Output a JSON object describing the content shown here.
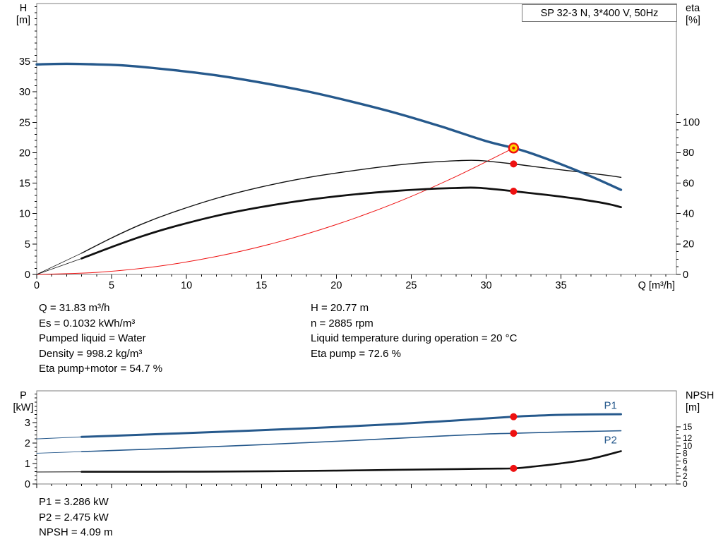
{
  "header": {
    "title": "SP 32-3 N, 3*400 V, 50Hz"
  },
  "info": {
    "top_left": [
      "Q = 31.83 m³/h",
      "Es = 0.1032 kWh/m³",
      "Pumped liquid = Water",
      "Density = 998.2 kg/m³",
      "Eta pump+motor = 54.7 %"
    ],
    "top_right": [
      "H = 20.77 m",
      "n = 2885 rpm",
      "Liquid temperature during operation = 20 °C",
      "Eta pump = 72.6 %"
    ],
    "bottom": [
      "P1 = 3.286 kW",
      "P2 = 2.475 kW",
      "NPSH = 4.09 m"
    ]
  },
  "colors": {
    "blue": "#26598c",
    "red": "#ee1111",
    "dark": "#111111",
    "duty_fill": "#ffd800",
    "frame": "#7f7f7f",
    "tick": "#000000",
    "text": "#000000"
  },
  "chart_data": [
    {
      "type": "line",
      "name": "head-efficiency-chart",
      "plot": {
        "l": 52,
        "r": 958,
        "t": 5,
        "b": 389
      },
      "x": {
        "label": "Q [m³/h]",
        "min": 0,
        "max": 42.7,
        "ticks": [
          0,
          5,
          10,
          15,
          20,
          25,
          30,
          35
        ],
        "minor": 1,
        "labels": true
      },
      "y_left": {
        "label": "H",
        "unit": "[m]",
        "min": 0,
        "max": 44.5,
        "ticks": [
          0,
          5,
          10,
          15,
          20,
          25,
          30,
          35
        ],
        "minor": 1
      },
      "y_right": {
        "label": "eta",
        "unit": "[%]",
        "min": 0,
        "max": 178,
        "ticks": [
          0,
          20,
          40,
          60,
          80,
          100
        ],
        "minor": 5,
        "minor_max": 105
      },
      "series": [
        {
          "name": "system-curve",
          "axis": "left",
          "color": "red",
          "width": 1,
          "points": [
            [
              0,
              0
            ],
            [
              4,
              0.33
            ],
            [
              8,
              1.31
            ],
            [
              12,
              2.95
            ],
            [
              16,
              5.25
            ],
            [
              20,
              8.2
            ],
            [
              24,
              11.8
            ],
            [
              28,
              16.1
            ],
            [
              31.83,
              20.77
            ]
          ]
        },
        {
          "name": "eta-pump-lead-line",
          "axis": "right",
          "color": "dark",
          "width": 0.8,
          "points": [
            [
              0,
              0
            ],
            [
              3,
              14
            ]
          ]
        },
        {
          "name": "eta-pump-motor-lead-line",
          "axis": "right",
          "color": "dark",
          "width": 0.8,
          "points": [
            [
              0,
              0
            ],
            [
              3,
              10.5
            ]
          ]
        },
        {
          "name": "eta-pump-curve",
          "axis": "right",
          "color": "dark",
          "width": 1.4,
          "points": [
            [
              3,
              14
            ],
            [
              5,
              24
            ],
            [
              7,
              33
            ],
            [
              9,
              40.5
            ],
            [
              12,
              50
            ],
            [
              15,
              57.5
            ],
            [
              18,
              63.5
            ],
            [
              21,
              68
            ],
            [
              24,
              71.8
            ],
            [
              26,
              73.6
            ],
            [
              28,
              74.7
            ],
            [
              29.5,
              74.9
            ],
            [
              31.83,
              72.6
            ],
            [
              34,
              69.9
            ],
            [
              36,
              67.6
            ],
            [
              38,
              65.2
            ],
            [
              39,
              63.8
            ]
          ]
        },
        {
          "name": "eta-pump-motor-curve",
          "axis": "right",
          "color": "dark",
          "width": 2.8,
          "points": [
            [
              3,
              10.5
            ],
            [
              5,
              18
            ],
            [
              7,
              25
            ],
            [
              9,
              31
            ],
            [
              12,
              38.5
            ],
            [
              15,
              44.3
            ],
            [
              18,
              48.9
            ],
            [
              21,
              52.4
            ],
            [
              24,
              54.9
            ],
            [
              26,
              56.1
            ],
            [
              28,
              56.8
            ],
            [
              29.5,
              56.9
            ],
            [
              31.83,
              54.7
            ],
            [
              34,
              52.3
            ],
            [
              36,
              49.8
            ],
            [
              38,
              46.6
            ],
            [
              39,
              44.2
            ]
          ]
        },
        {
          "name": "head-curve",
          "axis": "left",
          "color": "blue",
          "width": 3.4,
          "points": [
            [
              0,
              34.5
            ],
            [
              2,
              34.6
            ],
            [
              4,
              34.5
            ],
            [
              6,
              34.3
            ],
            [
              9,
              33.6
            ],
            [
              12,
              32.7
            ],
            [
              15,
              31.5
            ],
            [
              18,
              30.1
            ],
            [
              21,
              28.4
            ],
            [
              24,
              26.5
            ],
            [
              27,
              24.3
            ],
            [
              30,
              21.9
            ],
            [
              31.83,
              20.77
            ],
            [
              33,
              19.9
            ],
            [
              35,
              18.1
            ],
            [
              37,
              16.1
            ],
            [
              39,
              13.9
            ]
          ]
        }
      ],
      "markers": [
        {
          "name": "duty-point-marker",
          "style": "duty",
          "axis": "left",
          "x": 31.83,
          "y": 20.77
        },
        {
          "name": "eta-pump-point-marker",
          "style": "dot",
          "axis": "right",
          "x": 31.83,
          "y": 72.6
        },
        {
          "name": "eta-pump-motor-point-marker",
          "style": "dot",
          "axis": "right",
          "x": 31.83,
          "y": 54.7
        }
      ],
      "annotations": []
    },
    {
      "type": "line",
      "name": "power-npsh-chart",
      "plot": {
        "l": 52,
        "r": 958,
        "t": 554,
        "b": 686
      },
      "x": {
        "label": "",
        "min": 0,
        "max": 42.7,
        "ticks": [
          0,
          5,
          10,
          15,
          20,
          25,
          30,
          35,
          40
        ],
        "minor": 1,
        "labels": false
      },
      "y_left": {
        "label": "P",
        "unit": "[kW]",
        "min": 0,
        "max": 4.55,
        "ticks": [
          0,
          1,
          2,
          3
        ],
        "minor": 0.2
      },
      "y_right": {
        "label": "NPSH",
        "unit": "[m]",
        "min": 0,
        "max": 24.4,
        "ticks": [
          0,
          2,
          4,
          6,
          8,
          10,
          12,
          15
        ],
        "minor": 1,
        "minor_max": 15,
        "fs": 12
      },
      "series": [
        {
          "name": "p1-lead-line",
          "axis": "left",
          "color": "blue",
          "width": 1,
          "points": [
            [
              0,
              2.2
            ],
            [
              3,
              2.3
            ]
          ]
        },
        {
          "name": "p2-lead-line",
          "axis": "left",
          "color": "blue",
          "width": 0.9,
          "points": [
            [
              0,
              1.5
            ],
            [
              3,
              1.58
            ]
          ]
        },
        {
          "name": "npsh-lead-line",
          "axis": "right",
          "color": "dark",
          "width": 1,
          "points": [
            [
              0,
              3.15
            ],
            [
              3,
              3.2
            ]
          ]
        },
        {
          "name": "p1-curve",
          "axis": "left",
          "color": "blue",
          "width": 3,
          "points": [
            [
              3,
              2.3
            ],
            [
              6,
              2.38
            ],
            [
              9,
              2.46
            ],
            [
              12,
              2.54
            ],
            [
              15,
              2.63
            ],
            [
              18,
              2.72
            ],
            [
              21,
              2.82
            ],
            [
              24,
              2.93
            ],
            [
              27,
              3.06
            ],
            [
              30,
              3.2
            ],
            [
              31.83,
              3.286
            ],
            [
              33,
              3.33
            ],
            [
              35,
              3.38
            ],
            [
              37,
              3.4
            ],
            [
              39,
              3.41
            ]
          ]
        },
        {
          "name": "p2-curve",
          "axis": "left",
          "color": "blue",
          "width": 1.6,
          "points": [
            [
              3,
              1.58
            ],
            [
              6,
              1.66
            ],
            [
              9,
              1.74
            ],
            [
              12,
              1.83
            ],
            [
              15,
              1.92
            ],
            [
              18,
              2.02
            ],
            [
              21,
              2.12
            ],
            [
              24,
              2.23
            ],
            [
              27,
              2.34
            ],
            [
              30,
              2.44
            ],
            [
              31.83,
              2.475
            ],
            [
              33,
              2.5
            ],
            [
              35,
              2.54
            ],
            [
              37,
              2.57
            ],
            [
              39,
              2.6
            ]
          ]
        },
        {
          "name": "npsh-curve",
          "axis": "right",
          "color": "dark",
          "width": 2.6,
          "points": [
            [
              3,
              3.2
            ],
            [
              8,
              3.2
            ],
            [
              12,
              3.25
            ],
            [
              16,
              3.35
            ],
            [
              20,
              3.5
            ],
            [
              24,
              3.7
            ],
            [
              27,
              3.85
            ],
            [
              30,
              4.0
            ],
            [
              31.83,
              4.09
            ],
            [
              33,
              4.5
            ],
            [
              35,
              5.4
            ],
            [
              37,
              6.6
            ],
            [
              39,
              8.6
            ]
          ]
        }
      ],
      "markers": [
        {
          "name": "p1-point-marker",
          "style": "dot",
          "axis": "left",
          "x": 31.83,
          "y": 3.286
        },
        {
          "name": "p2-point-marker",
          "style": "dot",
          "axis": "left",
          "x": 31.83,
          "y": 2.475
        },
        {
          "name": "npsh-point-marker",
          "style": "dot",
          "axis": "right",
          "x": 31.83,
          "y": 4.09
        }
      ],
      "annotations": [
        {
          "name": "p1-curve-label",
          "text": "P1",
          "x": 38.3,
          "y": 3.85,
          "axis": "left",
          "color": "blue",
          "size": 15
        },
        {
          "name": "p2-curve-label",
          "text": "P2",
          "x": 38.3,
          "y": 2.15,
          "axis": "left",
          "color": "blue",
          "size": 15
        }
      ]
    }
  ]
}
